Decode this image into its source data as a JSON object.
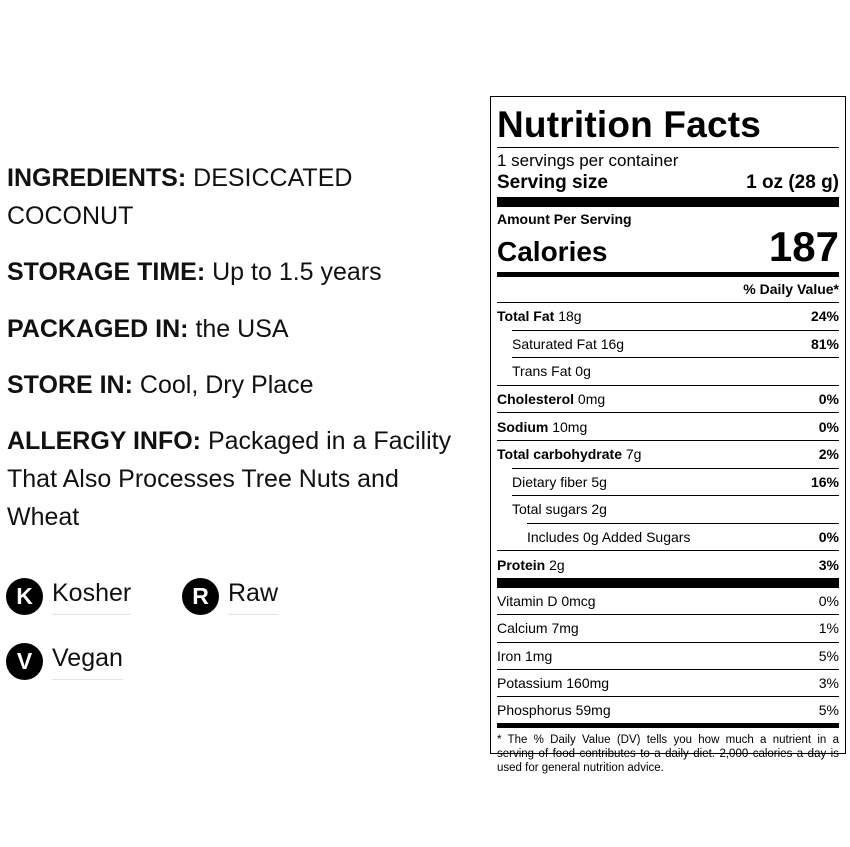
{
  "info": {
    "ingredients": {
      "label": "INGREDIENTS:",
      "value": "DESICCATED COCONUT"
    },
    "storage_time": {
      "label": "STORAGE TIME:",
      "value": "Up to 1.5 years"
    },
    "packaged_in": {
      "label": "PACKAGED IN:",
      "value": "the USA"
    },
    "store_in": {
      "label": "STORE IN:",
      "value": "Cool, Dry Place"
    },
    "allergy": {
      "label": "ALLERGY INFO:",
      "value": "Packaged in a Facility That Also Processes Tree Nuts and Wheat"
    }
  },
  "badges": [
    {
      "letter": "K",
      "label": "Kosher"
    },
    {
      "letter": "R",
      "label": "Raw"
    },
    {
      "letter": "V",
      "label": "Vegan"
    }
  ],
  "nutrition": {
    "title": "Nutrition Facts",
    "servings_per_container": "1 servings per container",
    "serving_size_label": "Serving size",
    "serving_size_value": "1 oz (28 g)",
    "amount_per_serving": "Amount Per Serving",
    "calories_label": "Calories",
    "calories_value": "187",
    "dv_header": "% Daily Value*",
    "rows": [
      {
        "name": "Total Fat",
        "amount": "18g",
        "dv": "24%"
      },
      {
        "name": "Saturated Fat",
        "amount": "16g",
        "dv": "81%"
      },
      {
        "name": "Trans Fat",
        "amount": "0g",
        "dv": ""
      },
      {
        "name": "Cholesterol",
        "amount": "0mg",
        "dv": "0%"
      },
      {
        "name": "Sodium",
        "amount": "10mg",
        "dv": "0%"
      },
      {
        "name": "Total carbohydrate",
        "amount": "7g",
        "dv": "2%"
      },
      {
        "name": "Dietary fiber",
        "amount": "5g",
        "dv": "16%"
      },
      {
        "name": "Total sugars",
        "amount": "2g",
        "dv": ""
      },
      {
        "name": "Includes 0g Added Sugars",
        "amount": "",
        "dv": "0%"
      },
      {
        "name": "Protein",
        "amount": "2g",
        "dv": "3%"
      }
    ],
    "vitamins": [
      {
        "name": "Vitamin D 0mcg",
        "dv": "0%"
      },
      {
        "name": "Calcium 7mg",
        "dv": "1%"
      },
      {
        "name": "Iron 1mg",
        "dv": "5%"
      },
      {
        "name": "Potassium 160mg",
        "dv": "3%"
      },
      {
        "name": "Phosphorus 59mg",
        "dv": "5%"
      }
    ],
    "footnote": "* The % Daily Value (DV) tells you how much a nutrient in a serving of food contributes to a daily diet. 2,000 calories a day is used for general nutrition advice."
  }
}
